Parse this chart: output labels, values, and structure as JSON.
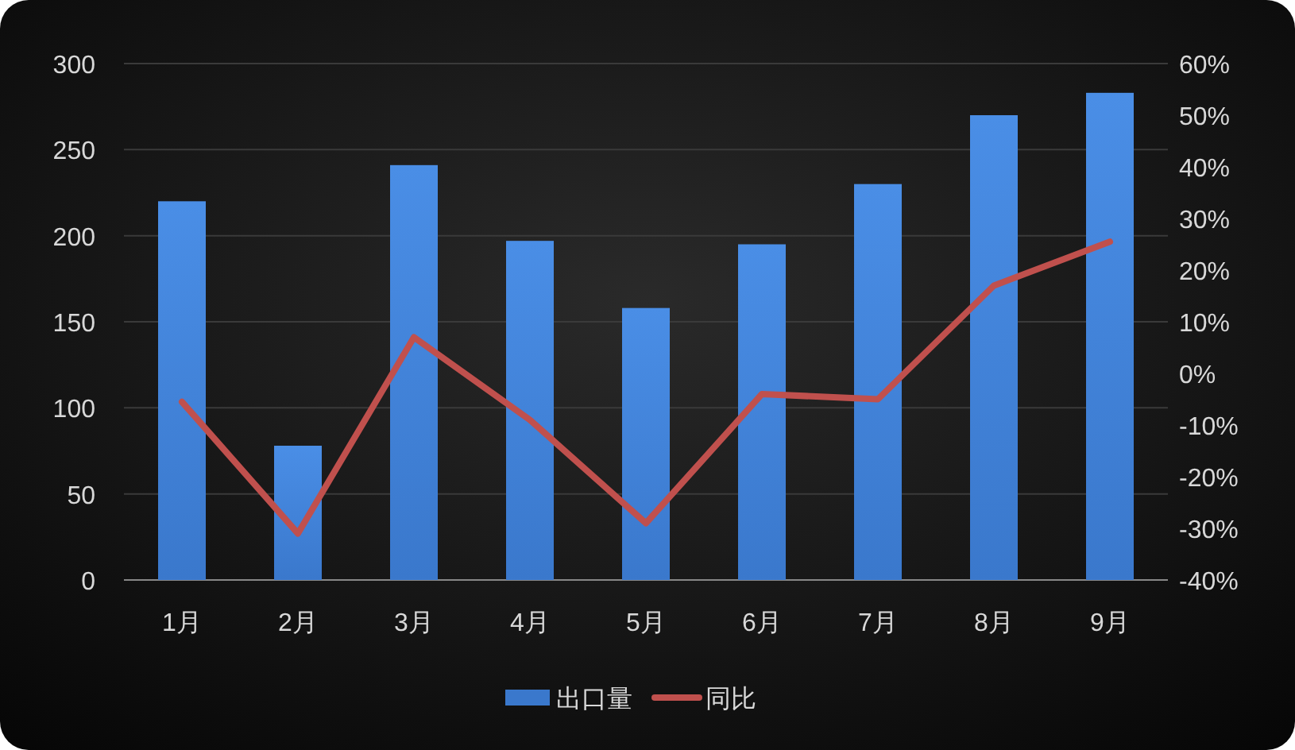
{
  "chart_data": {
    "type": "bar",
    "categories": [
      "1月",
      "2月",
      "3月",
      "4月",
      "5月",
      "6月",
      "7月",
      "8月",
      "9月"
    ],
    "series": [
      {
        "name": "出口量",
        "color": "#3a78cc",
        "values": [
          220,
          78,
          241,
          197,
          158,
          195,
          230,
          270,
          283
        ]
      },
      {
        "name": "同比",
        "type": "line",
        "axis": "y2",
        "color": "#c0504d",
        "values": [
          -5.5,
          -31,
          7,
          -9,
          -29,
          -4,
          -5,
          17,
          25.5
        ]
      }
    ],
    "ylim": [
      0,
      300
    ],
    "yticks": [
      0,
      50,
      100,
      150,
      200,
      250,
      300
    ],
    "y2lim": [
      -40,
      60
    ],
    "y2ticks": [
      {
        "value": -40,
        "label": "-40%"
      },
      {
        "value": -30,
        "label": "-30%"
      },
      {
        "value": -20,
        "label": "-20%"
      },
      {
        "value": -10,
        "label": "-10%"
      },
      {
        "value": 0,
        "label": "0%"
      },
      {
        "value": 10,
        "label": "10%"
      },
      {
        "value": 20,
        "label": "20%"
      },
      {
        "value": 30,
        "label": "30%"
      },
      {
        "value": 40,
        "label": "40%"
      },
      {
        "value": 50,
        "label": "50%"
      },
      {
        "value": 60,
        "label": "60%"
      }
    ],
    "grid": "y",
    "legend": "bottom"
  }
}
